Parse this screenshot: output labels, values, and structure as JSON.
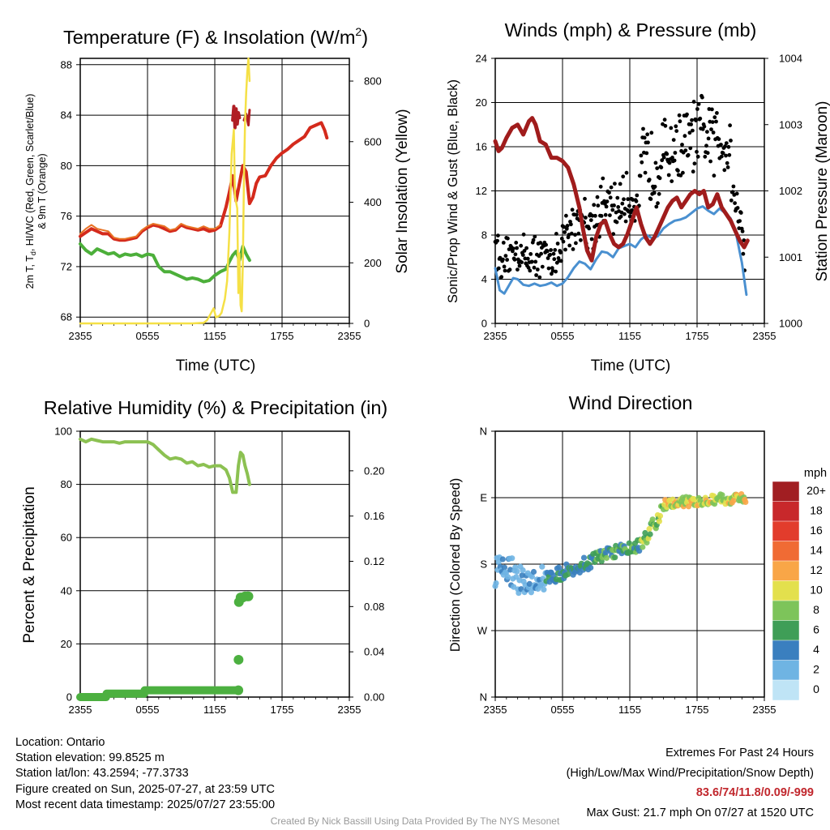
{
  "charts": {
    "temperature": {
      "title": "Temperature (F) & Insolation (W/m",
      "title_sup": "2",
      "title_end": ")",
      "xlabel": "Time (UTC)",
      "ylabel_left": [
        "2m T, T",
        "d",
        ", HI/WC (Red, Green, Scarlet/Blue)",
        "& 9m T (Orange)"
      ],
      "ylabel_right": "Solar Insolation (Yellow)"
    },
    "winds": {
      "title": "Winds (mph) & Pressure (mb)",
      "xlabel": "Time (UTC)",
      "ylabel_left": "Sonic/Prop Wind & Gust (Blue, Black)",
      "ylabel_right": "Station Pressure (Maroon)"
    },
    "humidity": {
      "title": "Relative Humidity (%) & Precipitation (in)",
      "ylabel_left": "Percent & Precipitation"
    },
    "direction": {
      "title": "Wind Direction",
      "ylabel_left": "Direction (Colored By Speed)",
      "legend_title": "mph"
    }
  },
  "chart_data": [
    {
      "type": "line",
      "x_ticks": [
        "2355",
        "0555",
        "1155",
        "1755",
        "2355"
      ],
      "xlim": [
        0,
        24
      ],
      "ylim": [
        67.5,
        88.5
      ],
      "y_ticks": [
        68,
        72,
        76,
        80,
        84,
        88
      ],
      "y2lim": [
        0,
        875
      ],
      "y2_ticks": [
        0,
        200,
        400,
        600,
        800
      ],
      "series": [
        {
          "color": "#d42a1c",
          "width": 4,
          "x": [
            0,
            0.5,
            1,
            1.5,
            2,
            2.5,
            3,
            3.5,
            4,
            4.5,
            5,
            5.5,
            6,
            6.5,
            7,
            7.5,
            8,
            8.5,
            9,
            9.5,
            10,
            10.5,
            11,
            11.5,
            12,
            12.5,
            13,
            13.3,
            13.6,
            13.9,
            14.2,
            14.5,
            14.8,
            15.1,
            15.4,
            15.7,
            16,
            16.5,
            17,
            17.5,
            18,
            18.5,
            19,
            19.5,
            20,
            20.5,
            21,
            21.5,
            21.8,
            22.0
          ],
          "y": [
            74.4,
            74.7,
            75.0,
            74.8,
            74.6,
            74.6,
            74.2,
            74.1,
            74.1,
            74.2,
            74.3,
            74.8,
            75.1,
            75.3,
            75.2,
            75.0,
            74.8,
            74.9,
            75.3,
            75.1,
            75.0,
            74.9,
            75.0,
            74.8,
            74.9,
            75.2,
            76.7,
            77.9,
            79.2,
            77.2,
            78.6,
            80.0,
            79.5,
            77.0,
            77.5,
            78.6,
            79.1,
            79.2,
            80.0,
            80.6,
            81.0,
            81.3,
            81.7,
            82.0,
            82.3,
            83.0,
            83.2,
            83.4,
            82.8,
            82.2
          ]
        },
        {
          "color": "#e87324",
          "width": 2,
          "x": [
            0,
            0.5,
            1,
            1.5,
            2,
            2.5,
            3,
            3.5,
            4,
            4.5,
            5,
            5.5,
            6,
            6.5,
            7,
            7.5,
            8,
            8.5,
            9,
            9.5,
            10,
            10.5,
            11,
            11.5,
            12,
            12.5
          ],
          "y": [
            74.6,
            75.0,
            75.3,
            75.0,
            74.9,
            74.8,
            74.3,
            74.2,
            74.2,
            74.3,
            74.4,
            74.9,
            75.2,
            75.4,
            75.3,
            75.2,
            74.9,
            75.0,
            75.4,
            75.2,
            75.1,
            75.0,
            75.2,
            75.0,
            75.0,
            75.3
          ]
        },
        {
          "color": "#4caf3a",
          "width": 4,
          "x": [
            0,
            0.5,
            1,
            1.5,
            2,
            2.5,
            3,
            3.5,
            4,
            4.5,
            5,
            5.5,
            6,
            6.5,
            7,
            7.5,
            8,
            8.5,
            9,
            9.5,
            10,
            10.5,
            11,
            11.5,
            12,
            12.5,
            13,
            13.3,
            13.6,
            13.9,
            14.2,
            14.5,
            14.8,
            15.1
          ],
          "y": [
            73.8,
            73.3,
            73.0,
            73.4,
            73.2,
            73.0,
            73.1,
            72.8,
            73.0,
            72.9,
            73.0,
            72.8,
            73.0,
            72.9,
            72.0,
            71.6,
            71.6,
            71.4,
            71.2,
            71.0,
            71.1,
            71.0,
            70.8,
            70.9,
            71.3,
            71.6,
            71.8,
            72.4,
            72.9,
            73.2,
            72.5,
            73.6,
            73.0,
            72.5
          ]
        },
        {
          "color": "#b01e24",
          "width": 4,
          "x": [
            13.6,
            13.7,
            13.8,
            13.9,
            14.0,
            14.1,
            14.2
          ],
          "y": [
            83.6,
            84.7,
            83.0,
            84.5,
            83.3,
            84.2,
            83.8
          ]
        },
        {
          "color": "#b01e24",
          "width": 3,
          "x": [
            14.6,
            14.8,
            15.0,
            15.1
          ],
          "y": [
            83.6,
            84.1,
            83.2,
            84.4
          ]
        },
        {
          "color": "#f5e046",
          "width": 2.5,
          "axis": "right",
          "x": [
            0,
            5,
            8,
            10,
            11,
            11.3,
            11.6,
            11.9,
            12.1,
            12.4,
            12.6,
            12.9,
            13.1,
            13.3,
            13.5,
            13.7,
            13.8,
            14.0,
            14.1,
            14.2,
            14.3,
            14.4,
            14.5,
            14.6,
            14.7,
            14.8,
            14.9,
            15.0,
            15.1
          ],
          "y": [
            0,
            0,
            0,
            0,
            2,
            10,
            30,
            50,
            20,
            25,
            35,
            80,
            140,
            300,
            560,
            640,
            420,
            380,
            100,
            230,
            60,
            40,
            200,
            480,
            660,
            760,
            830,
            875,
            800
          ]
        }
      ]
    },
    {
      "type": "line",
      "x_ticks": [
        "2355",
        "0555",
        "1155",
        "1755",
        "2355"
      ],
      "xlim": [
        0,
        24
      ],
      "ylim": [
        0,
        24
      ],
      "y_ticks": [
        0,
        4,
        8,
        12,
        16,
        20,
        24
      ],
      "y2lim": [
        1000,
        1004
      ],
      "y2_ticks": [
        1000,
        1001,
        1002,
        1003,
        1004
      ],
      "series": [
        {
          "color": "#4a90d0",
          "width": 3,
          "x": [
            0,
            0.4,
            0.8,
            1.2,
            1.6,
            2,
            2.5,
            3,
            3.5,
            4,
            4.5,
            5,
            5.5,
            6,
            6.5,
            7,
            7.5,
            8,
            8.5,
            9,
            9.5,
            10,
            10.5,
            11,
            11.5,
            12,
            12.5,
            13,
            13.5,
            14,
            14.5,
            15,
            15.5,
            16,
            16.5,
            17,
            17.5,
            18,
            18.5,
            19,
            19.5,
            20,
            20.5,
            21,
            21.5,
            22,
            22.4
          ],
          "y": [
            5.0,
            3.0,
            2.7,
            3.4,
            4.1,
            4.0,
            3.5,
            3.4,
            3.6,
            3.4,
            3.5,
            3.7,
            3.4,
            3.6,
            4.2,
            5.0,
            5.6,
            5.4,
            4.9,
            5.8,
            6.5,
            6.4,
            6.0,
            6.8,
            7.0,
            7.2,
            6.9,
            7.6,
            8.0,
            7.7,
            7.9,
            8.6,
            9.0,
            9.3,
            9.4,
            9.6,
            10.0,
            10.4,
            10.6,
            10.2,
            9.9,
            10.4,
            10.0,
            9.5,
            8.0,
            5.5,
            2.6
          ]
        },
        {
          "color": "#a01c1c",
          "width": 5,
          "axis": "right",
          "x": [
            0,
            0.3,
            0.6,
            1,
            1.5,
            2,
            2.5,
            3,
            3.3,
            3.6,
            4,
            4.5,
            5,
            5.5,
            6,
            6.5,
            7,
            7.5,
            7.8,
            8.2,
            8.6,
            9,
            9.4,
            9.8,
            10.2,
            10.6,
            11,
            11.4,
            11.8,
            12.2,
            12.6,
            13,
            13.4,
            13.8,
            14.2,
            14.6,
            15,
            15.4,
            15.8,
            16.2,
            16.6,
            17,
            17.4,
            17.8,
            18.2,
            18.6,
            19,
            19.4,
            19.8,
            20.2,
            20.6,
            21,
            21.4,
            21.8,
            22.2,
            22.5
          ],
          "y": [
            1002.75,
            1002.6,
            1002.65,
            1002.8,
            1002.95,
            1003.0,
            1002.85,
            1003.05,
            1003.1,
            1003.0,
            1002.75,
            1002.7,
            1002.5,
            1002.5,
            1002.45,
            1002.35,
            1002.1,
            1001.75,
            1001.45,
            1001.1,
            1000.95,
            1001.3,
            1001.5,
            1001.55,
            1001.35,
            1001.2,
            1001.15,
            1001.2,
            1001.35,
            1001.55,
            1001.75,
            1001.5,
            1001.3,
            1001.2,
            1001.3,
            1001.45,
            1001.6,
            1001.75,
            1001.85,
            1001.9,
            1001.75,
            1001.85,
            1001.95,
            1002.0,
            1001.95,
            1002.0,
            1001.75,
            1001.8,
            1001.95,
            1001.75,
            1001.65,
            1001.55,
            1001.4,
            1001.25,
            1001.15,
            1001.25
          ]
        },
        {
          "color": "#000000",
          "type": "scatter",
          "count": 360
        }
      ]
    },
    {
      "type": "line",
      "x_ticks": [
        "2355",
        "0555",
        "1155",
        "1755",
        "2355"
      ],
      "xlim": [
        0,
        24
      ],
      "ylim": [
        0,
        100
      ],
      "y_ticks": [
        0,
        20,
        40,
        60,
        80,
        100
      ],
      "y2lim": [
        0,
        0.235
      ],
      "y2_ticks": [
        "0.00",
        "0.04",
        "0.08",
        "0.12",
        "0.16",
        "0.20"
      ],
      "series": [
        {
          "color": "#8cc152",
          "width": 4,
          "x": [
            0,
            0.5,
            1,
            1.5,
            2,
            2.5,
            3,
            3.5,
            4,
            4.5,
            5,
            5.5,
            6,
            6.5,
            7,
            7.5,
            8,
            8.5,
            9,
            9.5,
            10,
            10.5,
            11,
            11.5,
            12,
            12.5,
            13,
            13.3,
            13.6,
            13.9,
            14.1,
            14.3,
            14.5,
            14.7,
            14.9,
            15.1
          ],
          "y": [
            97,
            96,
            97,
            96.5,
            96,
            96,
            96,
            95.5,
            96,
            96,
            96,
            96,
            96,
            95,
            93,
            91,
            89.5,
            90,
            89.5,
            88,
            88.5,
            87,
            87.5,
            86.5,
            87,
            87,
            85.5,
            82.5,
            77,
            77,
            87,
            92,
            91,
            87,
            84,
            80
          ]
        },
        {
          "color": "#4cb040",
          "width": 10,
          "axis": "right",
          "x": [
            0,
            2.3,
            2.35,
            5.7,
            5.75,
            14.1
          ],
          "y": [
            0.0,
            0.0,
            0.003,
            0.003,
            0.006,
            0.006
          ]
        },
        {
          "color": "#4cb040",
          "type": "scatter",
          "axis": "right",
          "x": [
            14.1,
            14.12,
            14.15,
            14.3,
            14.5,
            14.7,
            14.9,
            15.0
          ],
          "y": [
            0.006,
            0.033,
            0.084,
            0.088,
            0.088,
            0.089,
            0.089,
            0.089
          ]
        }
      ]
    },
    {
      "type": "scatter",
      "x_ticks": [
        "2355",
        "0555",
        "1155",
        "1755",
        "2355"
      ],
      "xlim": [
        0,
        24
      ],
      "y_ticks": [
        "N",
        "W",
        "S",
        "E",
        "N"
      ],
      "ylim": [
        0,
        360
      ],
      "legend": {
        "title": "mph",
        "labels": [
          "20+",
          "18",
          "16",
          "14",
          "12",
          "10",
          "8",
          "6",
          "4",
          "2",
          "0"
        ],
        "colors": [
          "#a11e22",
          "#c8282b",
          "#e23c2c",
          "#f06b34",
          "#f9a647",
          "#e3e04d",
          "#7dc45a",
          "#3f9e57",
          "#3a7fbf",
          "#6fb4e3",
          "#bfe4f6"
        ]
      },
      "count": 300
    }
  ],
  "footer": {
    "location": "Location: Ontario",
    "elevation": "Station elevation: 99.8525 m",
    "latlon": "Station lat/lon: 43.2594; -77.3733",
    "created": "Figure created on Sun, 2025-07-27, at 23:59 UTC",
    "recent": "Most recent data timestamp: 2025/07/27 23:55:00",
    "extremes_title": "Extremes For Past 24 Hours",
    "extremes_desc": "(High/Low/Max Wind/Precipitation/Snow Depth)",
    "extremes_values": "83.6/74/11.8/0.09/-999",
    "max_gust": "Max Gust: 21.7 mph On 07/27 at 1520 UTC",
    "credit": "Created By Nick Bassill Using Data Provided By The NYS Mesonet"
  }
}
